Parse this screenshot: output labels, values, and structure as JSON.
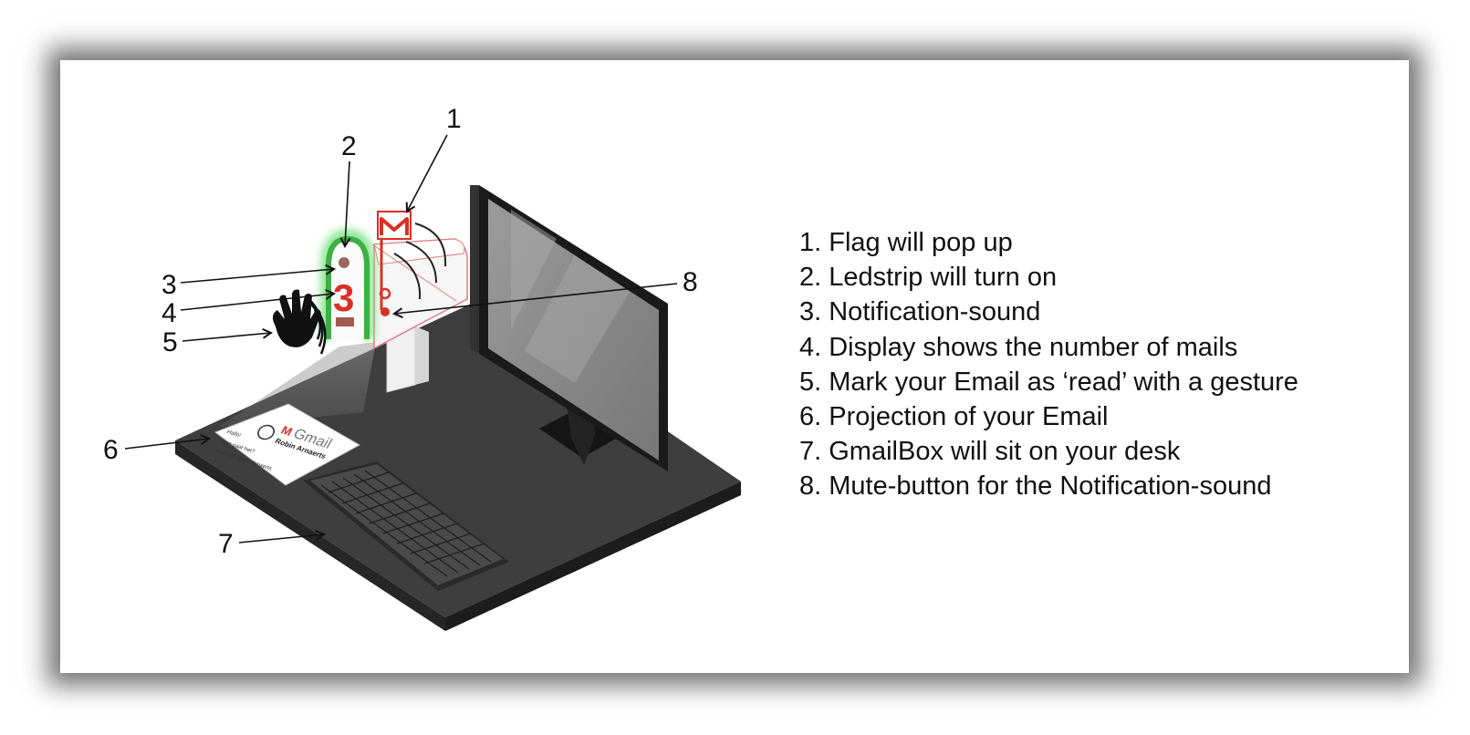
{
  "callouts": [
    "1",
    "2",
    "3",
    "4",
    "5",
    "6",
    "7",
    "8"
  ],
  "mailbox_counter": "3",
  "flag_logo": "M",
  "projection": {
    "brand": "Gmail",
    "sender": "Robin Arnaerts",
    "lines": [
      "Hallo!",
      "Hoe gaat het?",
      "Groetjes Robin Arnaerts"
    ]
  },
  "legend": [
    "1. Flag will pop up",
    "2. Ledstrip will turn on",
    "3. Notification-sound",
    "4. Display shows the number of  mails",
    "5. Mark your Email as ‘read’ with a gesture",
    "6. Projection of  your Email",
    "7. GmailBox will sit on your desk",
    "8. Mute-button for the Notification-sound"
  ],
  "colors": {
    "gmail_red": "#d93025",
    "led_green": "#3cb043",
    "desk": "#3c3c3c",
    "monitor": "#1e1e1e"
  },
  "icons": [
    "hand-wave-icon",
    "sound-waves-icon",
    "gmail-flag-icon",
    "mute-button-icon"
  ]
}
